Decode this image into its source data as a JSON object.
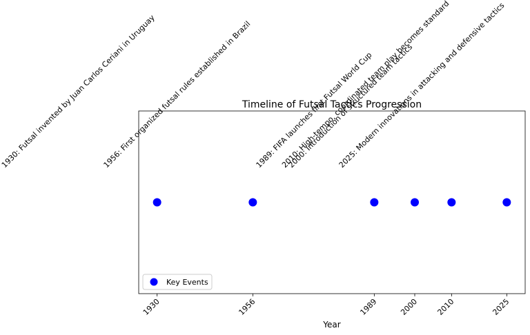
{
  "chart_data": {
    "type": "scatter",
    "title": "Timeline of Futsal Tactics Progression",
    "x_label": "Year",
    "series": [
      {
        "name": "Key Events",
        "color": "#0000ff",
        "x": [
          1930,
          1956,
          1989,
          2000,
          2010,
          2025
        ],
        "values": [
          1,
          1,
          1,
          1,
          1,
          1
        ]
      }
    ],
    "annotations": [
      "1930: Futsal invented by Juan Carlos Ceriani in Uruguay",
      "1956: First organized futsal rules established in Brazil",
      "1989: FIFA launches first Futsal World Cup",
      "2000: Introduction of structured team tactics",
      "2010: High-tempo, coordinated team play becomes standard",
      "2025: Modern innovations in attacking and defensive tactics"
    ],
    "xlim": [
      1925,
      2030
    ],
    "ylim": [
      0.94,
      1.06
    ],
    "xticks": [
      1930,
      1956,
      1989,
      2000,
      2010,
      2025
    ],
    "legend": "lower left"
  }
}
